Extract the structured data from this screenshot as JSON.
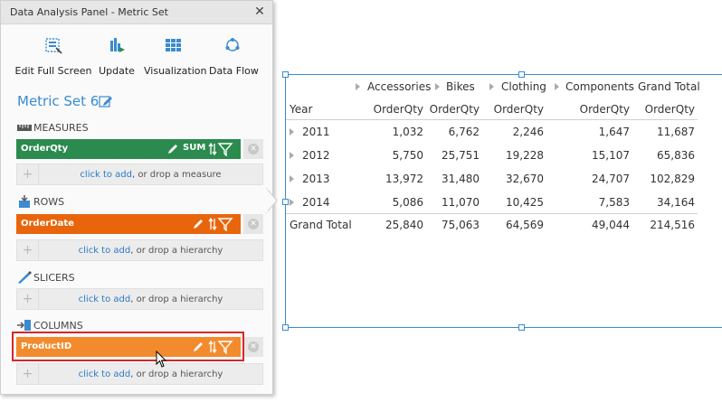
{
  "panel": {
    "title": "Data Analysis Panel - Metric Set",
    "close_glyph": "✕",
    "toolbar": [
      {
        "label": "Edit Full Screen",
        "icon": "edit-full-screen-icon"
      },
      {
        "label": "Update",
        "icon": "update-icon"
      },
      {
        "label": "Visualization",
        "icon": "visualization-icon"
      },
      {
        "label": "Data Flow",
        "icon": "data-flow-icon"
      }
    ],
    "metric_set_title": "Metric Set 6",
    "measures": {
      "heading": "MEASURES",
      "field": {
        "label": "OrderQty",
        "aggregation": "SUM",
        "color": "#2b8a4e"
      },
      "dropzone": {
        "link": "click to add",
        "suffix": ", or drop a measure"
      }
    },
    "rows": {
      "heading": "ROWS",
      "field": {
        "label": "OrderDate",
        "color": "#e8650c"
      },
      "dropzone": {
        "link": "click to add",
        "suffix": ", or drop a hierarchy"
      }
    },
    "slicers": {
      "heading": "SLICERS",
      "dropzone": {
        "link": "click to add",
        "suffix": ", or drop a hierarchy"
      }
    },
    "columns": {
      "heading": "COLUMNS",
      "field": {
        "label": "ProductID",
        "color": "#f28b2e"
      },
      "dropzone": {
        "link": "click to add",
        "suffix": ", or drop a hierarchy"
      }
    },
    "remove_glyph": "✕",
    "plus_glyph": "+"
  },
  "table": {
    "column_groups": [
      "Accessories",
      "Bikes",
      "Clothing",
      "Components",
      "Grand Total"
    ],
    "row_header": "Year",
    "measure_label": "OrderQty",
    "rows": [
      {
        "label": "2011",
        "values": [
          "1,032",
          "6,762",
          "2,246",
          "1,647",
          "11,687"
        ]
      },
      {
        "label": "2012",
        "values": [
          "5,750",
          "25,751",
          "19,228",
          "15,107",
          "65,836"
        ]
      },
      {
        "label": "2013",
        "values": [
          "13,972",
          "31,480",
          "32,670",
          "24,707",
          "102,829"
        ]
      },
      {
        "label": "2014",
        "values": [
          "5,086",
          "11,070",
          "10,425",
          "7,583",
          "34,164"
        ]
      }
    ],
    "grand_total": {
      "label": "Grand Total",
      "values": [
        "25,840",
        "75,063",
        "64,569",
        "49,044",
        "214,516"
      ]
    }
  }
}
